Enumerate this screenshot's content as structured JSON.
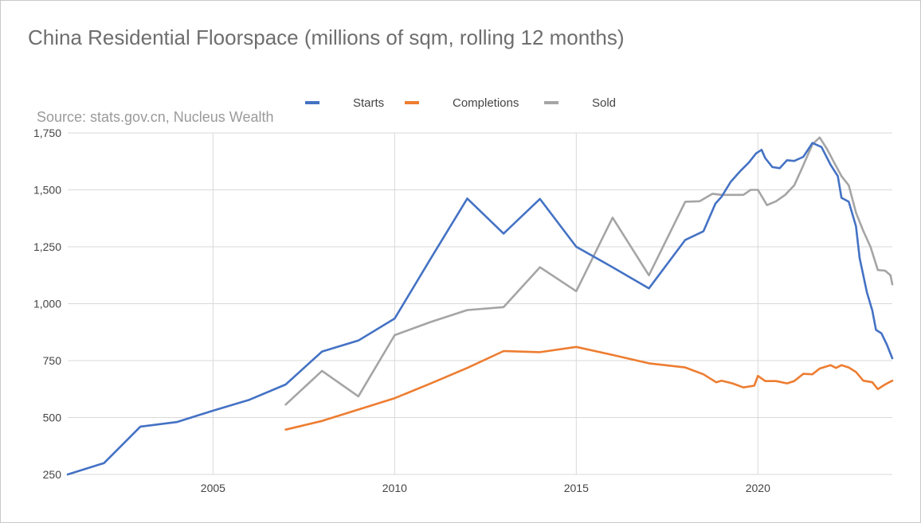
{
  "title": "China Residential Floorspace (millions of sqm, rolling 12 months)",
  "source": "Source: stats.gov.cn, Nucleus Wealth",
  "chart_data": {
    "type": "line",
    "title": "China Residential Floorspace (millions of sqm, rolling 12 months)",
    "xlabel": "",
    "ylabel": "",
    "xlim": [
      2001,
      2023.7
    ],
    "ylim": [
      250,
      1750
    ],
    "y_ticks": [
      250,
      500,
      750,
      1000,
      1250,
      1500,
      1750
    ],
    "y_tick_labels": [
      "250",
      "500",
      "750",
      "1,000",
      "1,250",
      "1,500",
      "1,750"
    ],
    "x_ticks": [
      2005,
      2010,
      2015,
      2020
    ],
    "x_tick_labels": [
      "2005",
      "2010",
      "2015",
      "2020"
    ],
    "grid": true,
    "legend_position": "top",
    "series": [
      {
        "name": "Starts",
        "color": "#4472c4",
        "points": [
          [
            2001,
            250
          ],
          [
            2002,
            300
          ],
          [
            2003,
            460
          ],
          [
            2004,
            480
          ],
          [
            2005,
            530
          ],
          [
            2006,
            578
          ],
          [
            2007,
            645
          ],
          [
            2008,
            790
          ],
          [
            2009,
            838
          ],
          [
            2010,
            935
          ],
          [
            2011,
            1200
          ],
          [
            2012,
            1462
          ],
          [
            2013,
            1308
          ],
          [
            2014,
            1460
          ],
          [
            2015,
            1250
          ],
          [
            2016,
            1160
          ],
          [
            2017,
            1067
          ],
          [
            2018,
            1280
          ],
          [
            2018.5,
            1318
          ],
          [
            2018.83,
            1440
          ],
          [
            2019,
            1470
          ],
          [
            2019.25,
            1535
          ],
          [
            2019.5,
            1580
          ],
          [
            2019.75,
            1620
          ],
          [
            2019.95,
            1660
          ],
          [
            2020.1,
            1676
          ],
          [
            2020.2,
            1640
          ],
          [
            2020.4,
            1600
          ],
          [
            2020.6,
            1595
          ],
          [
            2020.8,
            1630
          ],
          [
            2021,
            1627
          ],
          [
            2021.25,
            1645
          ],
          [
            2021.5,
            1706
          ],
          [
            2021.75,
            1688
          ],
          [
            2022,
            1610
          ],
          [
            2022.2,
            1560
          ],
          [
            2022.3,
            1465
          ],
          [
            2022.5,
            1448
          ],
          [
            2022.7,
            1340
          ],
          [
            2022.8,
            1200
          ],
          [
            2023,
            1050
          ],
          [
            2023.15,
            970
          ],
          [
            2023.25,
            885
          ],
          [
            2023.4,
            870
          ],
          [
            2023.55,
            820
          ],
          [
            2023.7,
            760
          ]
        ]
      },
      {
        "name": "Completions",
        "color": "#ed7d31",
        "points": [
          [
            2007,
            447
          ],
          [
            2008,
            485
          ],
          [
            2009,
            535
          ],
          [
            2010,
            585
          ],
          [
            2011,
            650
          ],
          [
            2012,
            718
          ],
          [
            2013,
            792
          ],
          [
            2014,
            787
          ],
          [
            2015,
            810
          ],
          [
            2016,
            775
          ],
          [
            2017,
            738
          ],
          [
            2018,
            720
          ],
          [
            2018.5,
            690
          ],
          [
            2018.85,
            655
          ],
          [
            2019,
            662
          ],
          [
            2019.3,
            650
          ],
          [
            2019.6,
            632
          ],
          [
            2019.9,
            640
          ],
          [
            2020,
            683
          ],
          [
            2020.2,
            660
          ],
          [
            2020.5,
            660
          ],
          [
            2020.8,
            650
          ],
          [
            2021,
            660
          ],
          [
            2021.25,
            692
          ],
          [
            2021.5,
            690
          ],
          [
            2021.7,
            715
          ],
          [
            2022,
            730
          ],
          [
            2022.15,
            718
          ],
          [
            2022.3,
            730
          ],
          [
            2022.5,
            720
          ],
          [
            2022.7,
            700
          ],
          [
            2022.9,
            662
          ],
          [
            2023.15,
            655
          ],
          [
            2023.3,
            625
          ],
          [
            2023.5,
            645
          ],
          [
            2023.7,
            662
          ]
        ]
      },
      {
        "name": "Sold",
        "color": "#a5a5a5",
        "points": [
          [
            2007,
            557
          ],
          [
            2008,
            705
          ],
          [
            2009,
            593
          ],
          [
            2010,
            862
          ],
          [
            2011,
            920
          ],
          [
            2012,
            972
          ],
          [
            2013,
            985
          ],
          [
            2014,
            1160
          ],
          [
            2015,
            1055
          ],
          [
            2016,
            1378
          ],
          [
            2017,
            1125
          ],
          [
            2018,
            1448
          ],
          [
            2018.4,
            1450
          ],
          [
            2018.75,
            1483
          ],
          [
            2019,
            1478
          ],
          [
            2019.3,
            1478
          ],
          [
            2019.6,
            1478
          ],
          [
            2019.8,
            1500
          ],
          [
            2020,
            1500
          ],
          [
            2020.25,
            1433
          ],
          [
            2020.5,
            1450
          ],
          [
            2020.75,
            1478
          ],
          [
            2021,
            1520
          ],
          [
            2021.2,
            1590
          ],
          [
            2021.5,
            1700
          ],
          [
            2021.7,
            1730
          ],
          [
            2021.9,
            1680
          ],
          [
            2022.1,
            1620
          ],
          [
            2022.3,
            1560
          ],
          [
            2022.5,
            1520
          ],
          [
            2022.7,
            1400
          ],
          [
            2022.9,
            1320
          ],
          [
            2023.1,
            1250
          ],
          [
            2023.3,
            1148
          ],
          [
            2023.5,
            1145
          ],
          [
            2023.65,
            1125
          ],
          [
            2023.7,
            1085
          ]
        ]
      }
    ]
  }
}
